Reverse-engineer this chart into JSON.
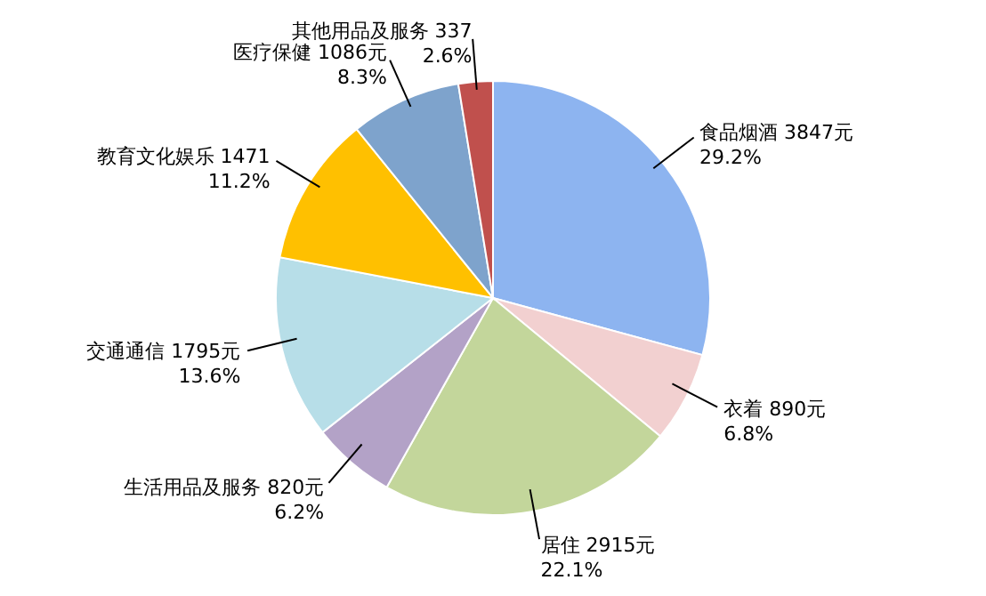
{
  "chart_data": {
    "type": "pie",
    "categories": [
      "食品烟酒",
      "衣着",
      "居住",
      "生活用品及服务",
      "交通通信",
      "教育文化娱乐",
      "医疗保健",
      "其他用品及服务"
    ],
    "values": [
      3847,
      890,
      2915,
      820,
      1795,
      1471,
      1086,
      337
    ],
    "value_labels": [
      "3847元\n29.2%",
      "890元\n6.8%",
      "2915元\n22.1%",
      "820元\n6.2%",
      "1795元\n13.6%",
      "1471\n11.2%",
      "1086元\n8.3%",
      "337\n2.6%"
    ],
    "colors": [
      "#8db4f0",
      "#f2d0d0",
      "#c3d69b",
      "#b3a2c7",
      "#b7dee8",
      "#ffc000",
      "#7ea3cc",
      "#c0504d"
    ]
  }
}
